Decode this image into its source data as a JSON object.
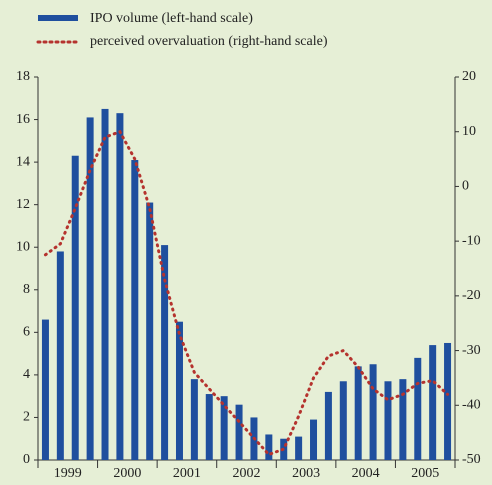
{
  "chart_data": {
    "type": "bar-line",
    "year_labels": [
      "1999",
      "2000",
      "2001",
      "2002",
      "2003",
      "2004",
      "2005"
    ],
    "series": [
      {
        "name": "IPO volume (left-hand scale)",
        "color": "#1f4f9e",
        "type": "bar",
        "values": [
          6.6,
          9.8,
          14.3,
          16.1,
          16.5,
          16.3,
          14.1,
          12.1,
          10.1,
          6.5,
          3.8,
          3.1,
          3.0,
          2.6,
          2.0,
          1.2,
          1.0,
          1.1,
          1.9,
          3.2,
          3.7,
          4.4,
          4.5,
          3.7,
          3.8,
          4.8,
          5.4,
          5.5
        ]
      },
      {
        "name": "perceived overvaluation (right-hand scale)",
        "color": "#b5332e",
        "type": "line",
        "axis": "y2",
        "values": [
          -12.5,
          -10.5,
          -4,
          3,
          9,
          10,
          5,
          -4,
          -17,
          -27,
          -34,
          -37,
          -40,
          -43,
          -46,
          -49,
          -48,
          -42,
          -35,
          -31,
          -30,
          -33,
          -37,
          -39,
          -38,
          -36,
          -35.5,
          -38
        ]
      }
    ],
    "ylim": [
      0,
      18
    ],
    "yticks": [
      0,
      2,
      4,
      6,
      8,
      10,
      12,
      14,
      16,
      18
    ],
    "y2lim": [
      -50,
      20
    ],
    "y2ticks": [
      -50,
      -40,
      -30,
      -20,
      -10,
      0,
      10,
      20
    ]
  }
}
